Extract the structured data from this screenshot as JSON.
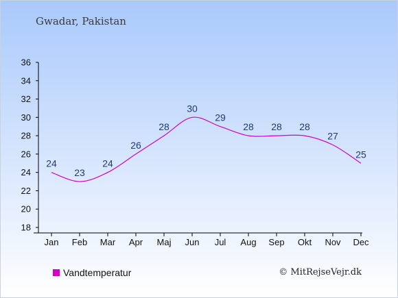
{
  "header": {
    "title": "Gwadar, Pakistan"
  },
  "footer": {
    "copyright": "© MitRejseVejr.dk"
  },
  "colors": {
    "series": "#d000c8",
    "axis": "#000000",
    "label": "#1f3a6b",
    "background_top": "#a9c9fb",
    "background_bottom": "#ffffff"
  },
  "chart_data": {
    "type": "line",
    "categories": [
      "Jan",
      "Feb",
      "Mar",
      "Apr",
      "Maj",
      "Jun",
      "Jul",
      "Aug",
      "Sep",
      "Okt",
      "Nov",
      "Dec"
    ],
    "series": [
      {
        "name": "Vandtemperatur",
        "values": [
          24,
          23,
          24,
          26,
          28,
          30,
          29,
          28,
          28,
          28,
          27,
          25
        ]
      }
    ],
    "ylim": [
      18,
      36
    ],
    "yticks": [
      18,
      20,
      22,
      24,
      26,
      28,
      30,
      32,
      34,
      36
    ],
    "grid": false,
    "data_labels": true,
    "legend": "bottom-left"
  }
}
